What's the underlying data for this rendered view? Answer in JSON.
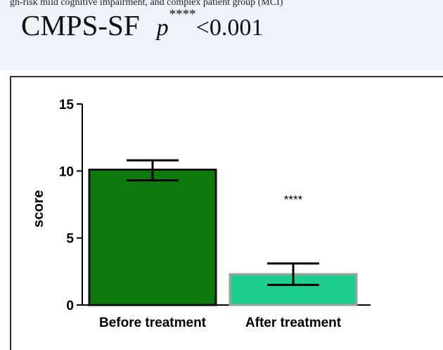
{
  "header": {
    "caption_fragment": "gh-risk mild cognitive impairment, and complex patient group (MCI)",
    "title": "CMPS-SF",
    "p_symbol": "p",
    "p_superscript": "****",
    "p_value_text": "<0.001"
  },
  "chart_data": {
    "type": "bar",
    "categories": [
      "Before treatment",
      "After treatment"
    ],
    "values": [
      10.1,
      2.3
    ],
    "error": [
      [
        9.3,
        10.8
      ],
      [
        1.5,
        3.1
      ]
    ],
    "bar_colors": [
      "#0e7a0e",
      "#1ccf8c"
    ],
    "bar_borders": [
      "#111111",
      "#a0a0a0"
    ],
    "annotations": [
      "",
      "****"
    ],
    "title": "",
    "xlabel": "",
    "ylabel": "score",
    "ylim": [
      0,
      15
    ],
    "yticks": [
      "0",
      "5",
      "10",
      "15"
    ],
    "grid": false
  }
}
